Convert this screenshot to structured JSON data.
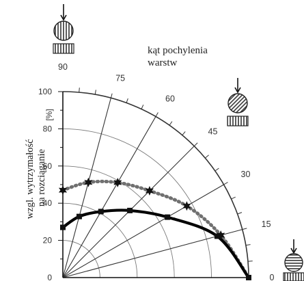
{
  "chart_data": {
    "type": "scatter",
    "coordinate_system": "polar",
    "title": "kąt pochylenia\nwarstw",
    "ylabel": "wzgl. wytrzymałość\nna rozciąganie",
    "yunit": "[%]",
    "r_ticks": [
      "0",
      "20",
      "40",
      "60",
      "80",
      "100"
    ],
    "angle_labels": [
      "0",
      "15",
      "30",
      "45",
      "60",
      "75",
      "90"
    ],
    "rlim": [
      0,
      100
    ],
    "angle_range_deg": [
      0,
      90
    ],
    "grid": true,
    "series": [
      {
        "color": "#707070",
        "line_style": "dotted-thick",
        "marker": "star",
        "points": [
          {
            "angle": 90,
            "r": 47
          },
          {
            "angle": 75,
            "r": 53
          },
          {
            "angle": 60,
            "r": 59
          },
          {
            "angle": 45,
            "r": 66
          },
          {
            "angle": 30,
            "r": 77
          },
          {
            "angle": 15,
            "r": 88
          }
        ],
        "end_r_at_0": 100
      },
      {
        "color": "#000000",
        "line_style": "solid-thick",
        "marker": "square",
        "points": [
          {
            "angle": 90,
            "r": 27
          },
          {
            "angle": 75,
            "r": 34
          },
          {
            "angle": 60,
            "r": 41
          },
          {
            "angle": 45,
            "r": 51
          },
          {
            "angle": 30,
            "r": 65
          },
          {
            "angle": 15,
            "r": 86
          }
        ],
        "end_r_at_0": 100
      }
    ]
  },
  "icons": {
    "at_90": "stone-specimen-vertical-layers-icon",
    "at_45": "stone-specimen-diagonal-layers-icon",
    "at_0": "stone-specimen-horizontal-layers-icon"
  }
}
